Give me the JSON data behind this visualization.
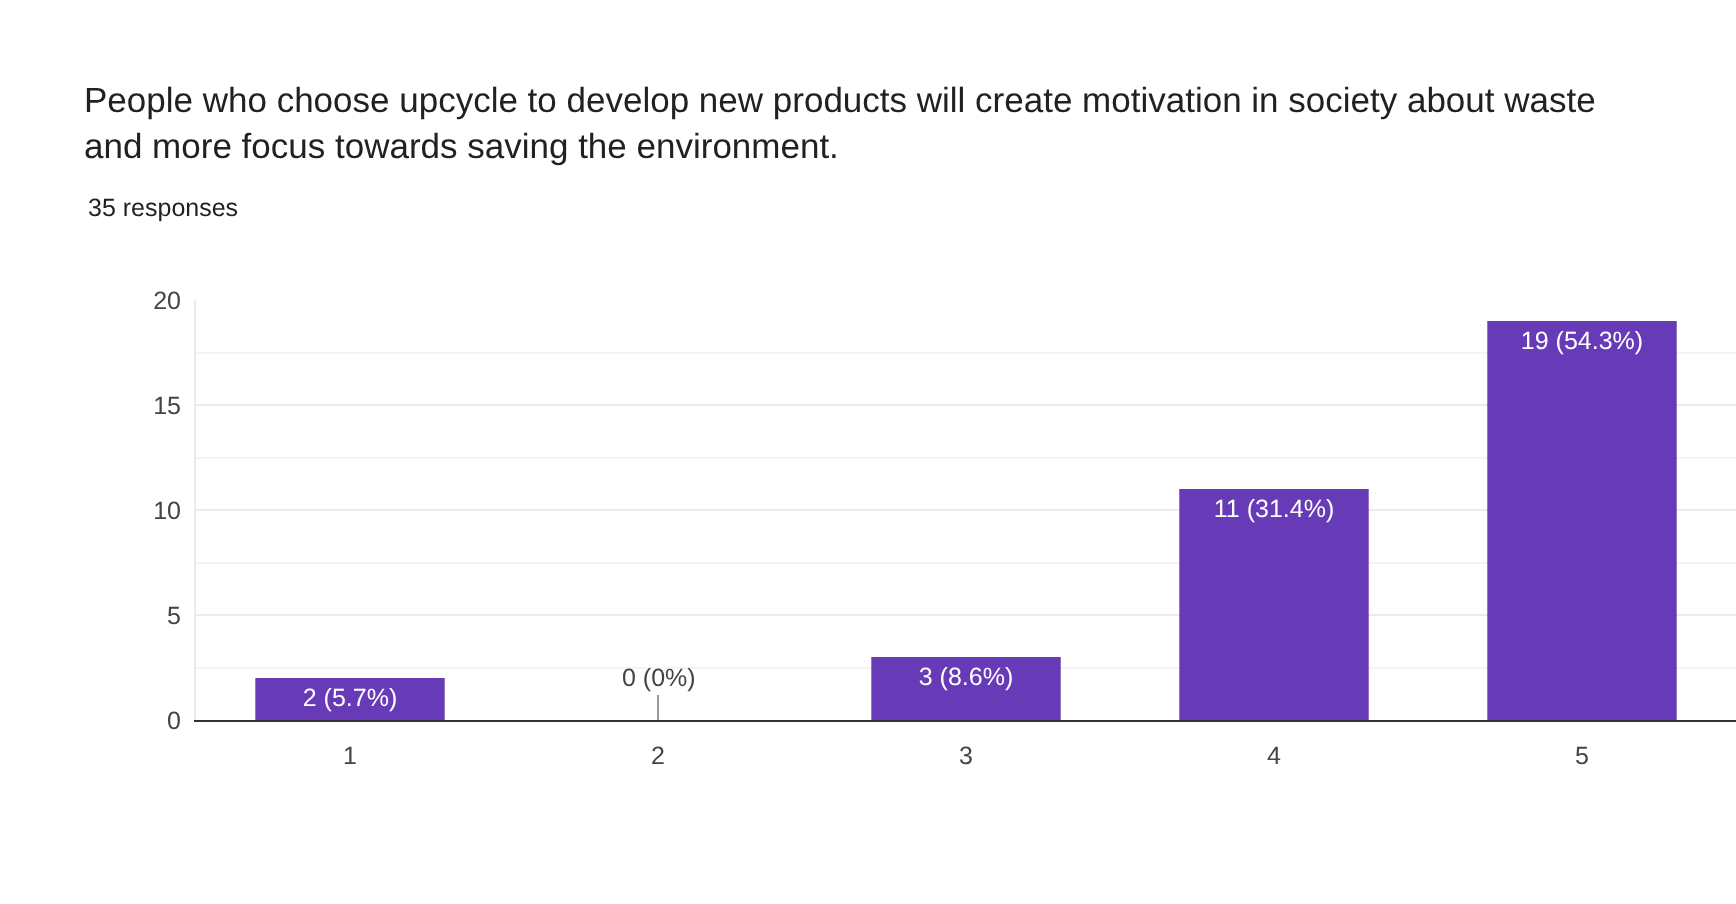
{
  "chart_data": {
    "type": "bar",
    "title": "People who choose upcycle to develop new products will create motivation in society about waste and more focus towards saving the environment.",
    "subtitle": "35 responses",
    "categories": [
      "1",
      "2",
      "3",
      "4",
      "5"
    ],
    "values": [
      2,
      0,
      3,
      11,
      19
    ],
    "value_labels": [
      "2 (5.7%)",
      "0 (0%)",
      "3 (8.6%)",
      "11 (31.4%)",
      "19 (54.3%)"
    ],
    "color": "#673ab7",
    "ylim": [
      0,
      20
    ],
    "yticks": [
      0,
      5,
      10,
      15,
      20
    ],
    "grid": "y"
  }
}
